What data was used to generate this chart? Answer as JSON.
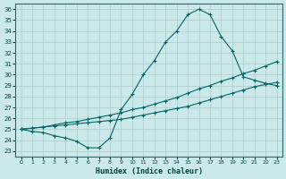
{
  "xlabel": "Humidex (Indice chaleur)",
  "background_color": "#cce9e9",
  "grid_color": "#aacccc",
  "line_color": "#006666",
  "x_ticks": [
    0,
    1,
    2,
    3,
    4,
    5,
    6,
    7,
    8,
    9,
    10,
    11,
    12,
    13,
    14,
    15,
    16,
    17,
    18,
    19,
    20,
    21,
    22,
    23
  ],
  "y_ticks": [
    23,
    24,
    25,
    26,
    27,
    28,
    29,
    30,
    31,
    32,
    33,
    34,
    35,
    36
  ],
  "ylim": [
    22.5,
    36.5
  ],
  "xlim": [
    -0.5,
    23.5
  ],
  "curve1_x": [
    0,
    1,
    2,
    3,
    4,
    5,
    6,
    7,
    8,
    9,
    10,
    11,
    12,
    13,
    14,
    15,
    16,
    17,
    18,
    19,
    20,
    21,
    22,
    23
  ],
  "curve1_y": [
    25.0,
    24.8,
    24.7,
    24.4,
    24.2,
    23.9,
    23.3,
    23.3,
    24.2,
    26.8,
    28.2,
    30.0,
    31.3,
    33.0,
    34.0,
    35.5,
    36.0,
    35.5,
    33.5,
    32.2,
    29.8,
    29.5,
    29.2,
    29.0
  ],
  "curve2_x": [
    0,
    1,
    2,
    3,
    4,
    5,
    6,
    7,
    8,
    9,
    10,
    11,
    12,
    13,
    14,
    15,
    16,
    17,
    18,
    19,
    20,
    21,
    22,
    23
  ],
  "curve2_y": [
    25.0,
    25.1,
    25.2,
    25.3,
    25.4,
    25.5,
    25.6,
    25.7,
    25.8,
    25.9,
    26.1,
    26.3,
    26.5,
    26.7,
    26.9,
    27.1,
    27.4,
    27.7,
    28.0,
    28.3,
    28.6,
    28.9,
    29.1,
    29.3
  ],
  "curve3_x": [
    0,
    1,
    2,
    3,
    4,
    5,
    6,
    7,
    8,
    9,
    10,
    11,
    12,
    13,
    14,
    15,
    16,
    17,
    18,
    19,
    20,
    21,
    22,
    23
  ],
  "curve3_y": [
    25.0,
    25.1,
    25.2,
    25.4,
    25.6,
    25.7,
    25.9,
    26.1,
    26.3,
    26.5,
    26.8,
    27.0,
    27.3,
    27.6,
    27.9,
    28.3,
    28.7,
    29.0,
    29.4,
    29.7,
    30.1,
    30.4,
    30.8,
    31.2
  ]
}
